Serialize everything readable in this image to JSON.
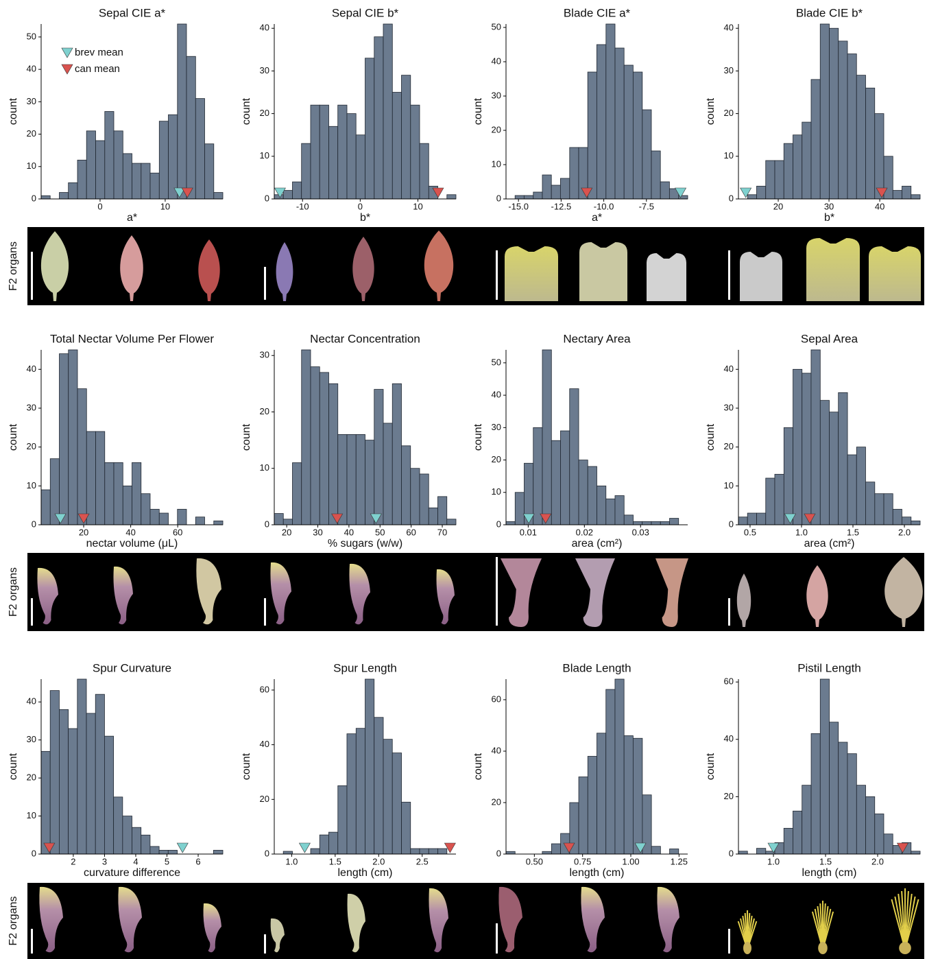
{
  "chart_data": [
    {
      "type": "histogram",
      "title": "Sepal CIE a*",
      "xlabel": "a*",
      "ylabel": "count",
      "bins": [
        -9.05,
        -7.66,
        -6.26,
        -4.87,
        -3.47,
        -2.08,
        -0.68,
        0.72,
        2.11,
        3.51,
        4.9,
        6.3,
        7.69,
        9.09,
        10.48,
        11.88,
        13.27,
        14.67,
        16.06,
        17.46,
        18.85
      ],
      "counts": [
        1,
        0,
        2,
        5,
        12,
        21,
        18,
        27,
        21,
        14,
        11,
        11,
        8,
        24,
        26,
        54,
        44,
        31,
        17,
        2
      ],
      "xlim": [
        -9.05,
        18.85
      ],
      "ylim": [
        0,
        54
      ],
      "xticks": [
        0,
        10
      ],
      "yticks": [
        0,
        10,
        20,
        30,
        40,
        50
      ],
      "brev_mean": 12.2,
      "can_mean": 13.4
    },
    {
      "type": "histogram",
      "title": "Sepal CIE b*",
      "xlabel": "b*",
      "ylabel": "count",
      "bins": [
        -14.9,
        -13.33,
        -11.75,
        -10.18,
        -8.6,
        -7.03,
        -5.45,
        -3.88,
        -2.3,
        -0.73,
        0.85,
        2.43,
        4.0,
        5.58,
        7.15,
        8.73,
        10.3,
        11.88,
        13.45,
        15.03,
        16.6
      ],
      "counts": [
        1,
        2,
        4,
        13,
        22,
        22,
        17,
        22,
        20,
        15,
        33,
        38,
        41,
        25,
        29,
        22,
        13,
        3,
        0,
        1
      ],
      "xlim": [
        -14.9,
        16.6
      ],
      "ylim": [
        0,
        41
      ],
      "xticks": [
        -10,
        0,
        10
      ],
      "yticks": [
        0,
        10,
        20,
        30,
        40
      ],
      "brev_mean": -13.9,
      "can_mean": 13.5
    },
    {
      "type": "histogram",
      "title": "Blade CIE a*",
      "xlabel": "a*",
      "ylabel": "count",
      "bins": [
        -15.73,
        -15.2,
        -14.67,
        -14.13,
        -13.6,
        -13.07,
        -12.54,
        -12.0,
        -11.47,
        -10.94,
        -10.41,
        -9.87,
        -9.34,
        -8.81,
        -8.28,
        -7.74,
        -7.21,
        -6.68,
        -6.15,
        -5.61,
        -5.08
      ],
      "counts": [
        0,
        1,
        1,
        2,
        7,
        4,
        6,
        15,
        15,
        37,
        45,
        51,
        44,
        39,
        37,
        26,
        14,
        5,
        3,
        1
      ],
      "xlim": [
        -15.73,
        -5.08
      ],
      "ylim": [
        0,
        51
      ],
      "xticks": [
        {
          "value": -15,
          "label": "-15.0"
        },
        {
          "value": -12.5,
          "label": "-12.5"
        },
        {
          "value": -10,
          "label": "-10.0"
        },
        {
          "value": -7.5,
          "label": "-7.5"
        }
      ],
      "yticks": [
        0,
        10,
        20,
        30,
        40,
        50
      ],
      "brev_mean": -5.5,
      "can_mean": -11.0
    },
    {
      "type": "histogram",
      "title": "Blade CIE b*",
      "xlabel": "b*",
      "ylabel": "count",
      "bins": [
        12.16,
        13.95,
        15.74,
        17.53,
        19.32,
        21.11,
        22.9,
        24.69,
        26.48,
        28.27,
        30.06,
        31.85,
        33.64,
        35.43,
        37.22,
        39.01,
        40.8,
        42.59,
        44.38,
        46.17,
        47.96
      ],
      "counts": [
        0,
        1,
        3,
        9,
        9,
        13,
        15,
        18,
        28,
        41,
        40,
        37,
        34,
        29,
        26,
        20,
        10,
        2,
        3,
        1
      ],
      "xlim": [
        12.16,
        47.96
      ],
      "ylim": [
        0,
        41
      ],
      "xticks": [
        20,
        30,
        40
      ],
      "yticks": [
        0,
        10,
        20,
        30,
        40
      ],
      "brev_mean": 13.6,
      "can_mean": 40.4
    },
    {
      "type": "histogram",
      "title": "Total Nectar Volume Per Flower",
      "xlabel": "nectar volume (μL)",
      "ylabel": "count",
      "bins": [
        1.9,
        5.77,
        9.63,
        13.5,
        17.36,
        21.23,
        25.09,
        28.96,
        32.82,
        36.69,
        40.55,
        44.42,
        48.28,
        52.15,
        56.01,
        59.88,
        63.74,
        67.61,
        71.47,
        75.34,
        79.2
      ],
      "counts": [
        9,
        17,
        44,
        45,
        35,
        24,
        24,
        16,
        16,
        10,
        16,
        8,
        4,
        3,
        0,
        4,
        0,
        2,
        0,
        1
      ],
      "xlim": [
        1.9,
        79.2
      ],
      "ylim": [
        0,
        45
      ],
      "xticks": [
        20,
        40,
        60
      ],
      "yticks": [
        0,
        10,
        20,
        30,
        40
      ],
      "brev_mean": 10.1,
      "can_mean": 20
    },
    {
      "type": "histogram",
      "title": "Nectar Concentration",
      "xlabel": "% sugars (w/w)",
      "ylabel": "count",
      "bins": [
        16,
        18.92,
        21.84,
        24.76,
        27.68,
        30.6,
        33.52,
        36.44,
        39.36,
        42.28,
        45.2,
        48.12,
        51.04,
        53.96,
        56.88,
        59.8,
        62.72,
        65.64,
        68.56,
        71.48,
        74.4
      ],
      "counts": [
        2,
        1,
        11,
        31,
        28,
        27,
        25,
        16,
        16,
        16,
        15,
        24,
        18,
        25,
        14,
        10,
        9,
        3,
        5,
        1
      ],
      "xlim": [
        16,
        74.4
      ],
      "ylim": [
        0,
        31
      ],
      "xticks": [
        20,
        30,
        40,
        50,
        60,
        70
      ],
      "yticks": [
        0,
        10,
        20,
        30
      ],
      "brev_mean": 48.7,
      "can_mean": 36.2
    },
    {
      "type": "histogram",
      "title": "Nectary Area",
      "xlabel": "area (cm²)",
      "ylabel": "count",
      "bins": [
        0.00605,
        0.00767,
        0.00928,
        0.0109,
        0.01252,
        0.01414,
        0.01575,
        0.01737,
        0.01899,
        0.0206,
        0.02222,
        0.02384,
        0.02545,
        0.02707,
        0.02869,
        0.0303,
        0.03192,
        0.03354,
        0.03516,
        0.03677,
        0.03839
      ],
      "counts": [
        1,
        10,
        19,
        30,
        54,
        26,
        29,
        42,
        20,
        18,
        12,
        8,
        9,
        3,
        1,
        1,
        1,
        1,
        2,
        0
      ],
      "xlim": [
        0.00605,
        0.03839
      ],
      "ylim": [
        0,
        54
      ],
      "xticks": [
        0.01,
        0.02,
        0.03
      ],
      "yticks": [
        0,
        10,
        20,
        30,
        40,
        50
      ],
      "brev_mean": 0.0101,
      "can_mean": 0.0131
    },
    {
      "type": "histogram",
      "title": "Sepal Area",
      "xlabel": "area (cm²)",
      "ylabel": "count",
      "bins": [
        0.387,
        0.475,
        0.564,
        0.652,
        0.74,
        0.829,
        0.917,
        1.005,
        1.093,
        1.182,
        1.27,
        1.358,
        1.447,
        1.535,
        1.623,
        1.712,
        1.8,
        1.888,
        1.976,
        2.065,
        2.153
      ],
      "counts": [
        2,
        3,
        3,
        12,
        13,
        25,
        40,
        39,
        45,
        32,
        29,
        34,
        18,
        20,
        11,
        8,
        8,
        4,
        2,
        1
      ],
      "xlim": [
        0.387,
        2.153
      ],
      "ylim": [
        0,
        45
      ],
      "xticks": [
        0.5,
        {
          "value": 1,
          "label": "1.0"
        },
        1.5,
        {
          "value": 2,
          "label": "2.0"
        }
      ],
      "yticks": [
        0,
        10,
        20,
        30,
        40
      ],
      "brev_mean": 0.89,
      "can_mean": 1.08
    },
    {
      "type": "histogram",
      "title": "Spur Curvature",
      "xlabel": "curvature difference",
      "ylabel": "count",
      "bins": [
        0.97,
        1.26,
        1.55,
        1.84,
        2.13,
        2.42,
        2.71,
        3.0,
        3.29,
        3.58,
        3.88,
        4.17,
        4.46,
        4.75,
        5.04,
        5.33,
        5.62,
        5.91,
        6.2,
        6.49,
        6.79
      ],
      "counts": [
        27,
        43,
        38,
        33,
        46,
        37,
        42,
        31,
        15,
        10,
        7,
        5,
        2,
        1,
        1,
        0,
        0,
        0,
        0,
        1
      ],
      "xlim": [
        0.97,
        6.79
      ],
      "ylim": [
        0,
        46
      ],
      "xticks": [
        2,
        3,
        4,
        5,
        6
      ],
      "yticks": [
        0,
        10,
        20,
        30,
        40
      ],
      "brev_mean": 5.5,
      "can_mean": 1.23
    },
    {
      "type": "histogram",
      "title": "Spur Length",
      "xlabel": "length (cm)",
      "ylabel": "count",
      "bins": [
        0.8,
        0.904,
        1.009,
        1.113,
        1.218,
        1.322,
        1.426,
        1.531,
        1.635,
        1.74,
        1.844,
        1.948,
        2.053,
        2.157,
        2.262,
        2.366,
        2.47,
        2.575,
        2.679,
        2.784,
        2.888
      ],
      "counts": [
        0,
        1,
        0,
        0,
        2,
        7,
        8,
        25,
        44,
        46,
        64,
        50,
        42,
        37,
        19,
        2,
        2,
        2,
        2,
        0
      ],
      "xlim": [
        0.8,
        2.888
      ],
      "ylim": [
        0,
        64
      ],
      "xticks": [
        {
          "value": 1,
          "label": "1.0"
        },
        1.5,
        {
          "value": 2,
          "label": "2.0"
        },
        2.5
      ],
      "yticks": [
        0,
        20,
        40,
        60
      ],
      "brev_mean": 1.15,
      "can_mean": 2.82
    },
    {
      "type": "histogram",
      "title": "Blade Length",
      "xlabel": "length (cm)",
      "ylabel": "count",
      "bins": [
        0.353,
        0.4,
        0.447,
        0.494,
        0.541,
        0.589,
        0.636,
        0.683,
        0.73,
        0.777,
        0.824,
        0.871,
        0.918,
        0.965,
        1.012,
        1.06,
        1.107,
        1.154,
        1.201,
        1.248,
        1.295
      ],
      "counts": [
        1,
        0,
        0,
        0,
        1,
        4,
        8,
        20,
        30,
        38,
        47,
        64,
        68,
        46,
        45,
        23,
        3,
        0,
        2,
        0
      ],
      "xlim": [
        0.353,
        1.295
      ],
      "ylim": [
        0,
        68
      ],
      "xticks": [
        {
          "value": 0.5,
          "label": "0.50"
        },
        0.75,
        {
          "value": 1,
          "label": "1.00"
        },
        1.25
      ],
      "yticks": [
        0,
        20,
        40,
        60
      ],
      "brev_mean": 1.05,
      "can_mean": 0.68
    },
    {
      "type": "histogram",
      "title": "Pistil Length",
      "xlabel": "length (cm)",
      "ylabel": "count",
      "bins": [
        0.664,
        0.751,
        0.838,
        0.926,
        1.013,
        1.1,
        1.187,
        1.274,
        1.362,
        1.449,
        1.536,
        1.623,
        1.71,
        1.798,
        1.885,
        1.972,
        2.059,
        2.146,
        2.234,
        2.321,
        2.408
      ],
      "counts": [
        1,
        0,
        2,
        1,
        4,
        9,
        15,
        24,
        42,
        61,
        46,
        39,
        35,
        24,
        20,
        14,
        7,
        3,
        4,
        1
      ],
      "xlim": [
        0.664,
        2.408
      ],
      "ylim": [
        0,
        61
      ],
      "xticks": [
        {
          "value": 1,
          "label": "1.0"
        },
        1.5,
        {
          "value": 2,
          "label": "2.0"
        }
      ],
      "yticks": [
        0,
        20,
        40,
        60
      ],
      "brev_mean": 1.0,
      "can_mean": 2.24
    }
  ],
  "legend": [
    {
      "name": "brev mean",
      "color": "#7fd1cf"
    },
    {
      "name": "can mean",
      "color": "#d9534f"
    }
  ],
  "strip_label": "F2 organs"
}
